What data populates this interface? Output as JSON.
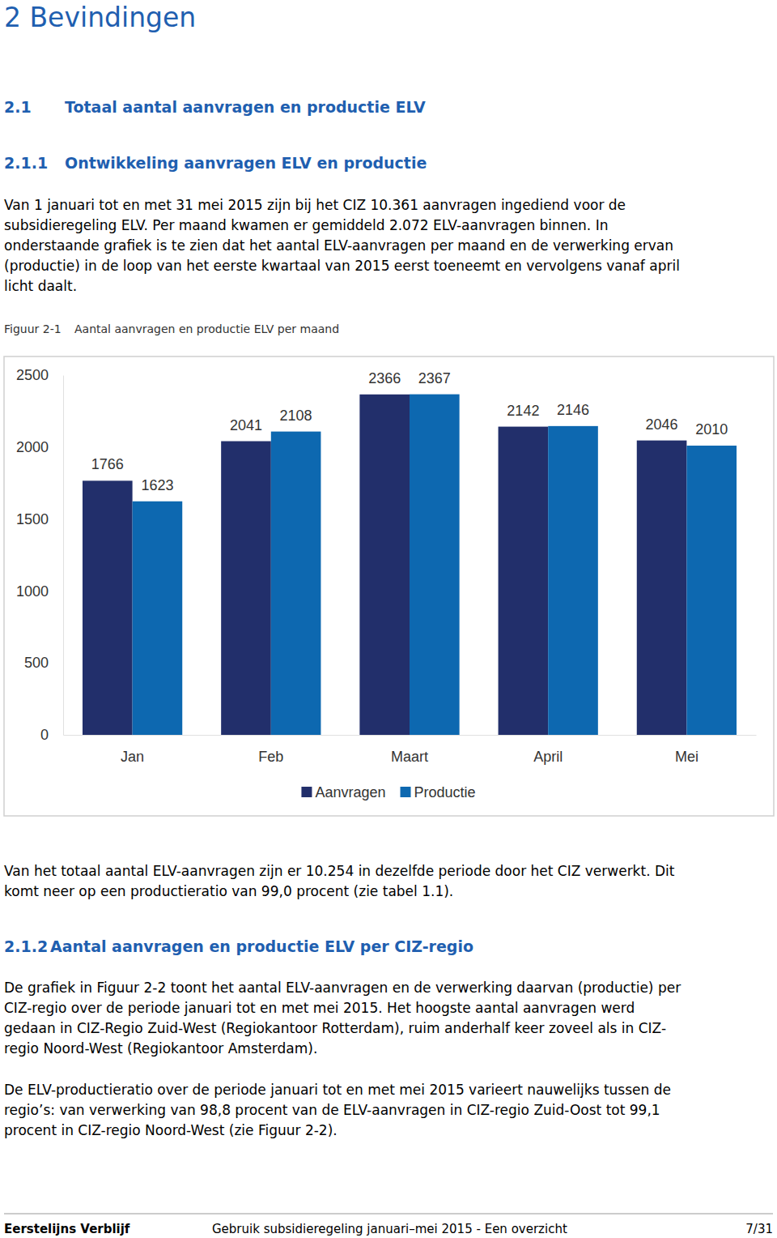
{
  "heading": "2 Bevindingen",
  "section": {
    "number": "2.1",
    "title": "Totaal aantal aanvragen en productie ELV"
  },
  "subsection_1": {
    "number": "2.1.1",
    "title": "Ontwikkeling aanvragen ELV en productie"
  },
  "paragraph_1": [
    "Van 1 januari tot en met 31 mei 2015 zijn bij het CIZ 10.361 aanvragen ingediend voor de",
    "subsidieregeling ELV. Per maand kwamen er gemiddeld 2.072 ELV-aanvragen binnen. In",
    "onderstaande grafiek is te zien dat het aantal ELV-aanvragen per maand en de verwerking ervan",
    "(productie) in de loop van het eerste kwartaal van 2015 eerst toeneemt en vervolgens vanaf april",
    "licht daalt."
  ],
  "figure_caption": {
    "number": "Figuur 2-1",
    "title": "Aantal aanvragen en productie ELV per maand"
  },
  "chart_data": {
    "type": "bar",
    "categories": [
      "Jan",
      "Feb",
      "Maart",
      "April",
      "Mei"
    ],
    "series": [
      {
        "name": "Aanvragen",
        "color": "#222f6b",
        "values": [
          1766,
          2041,
          2366,
          2142,
          2046
        ]
      },
      {
        "name": "Productie",
        "color": "#0d68b0",
        "values": [
          1623,
          2108,
          2367,
          2146,
          2010
        ]
      }
    ],
    "ylim": [
      0,
      2500
    ],
    "yticks": [
      0,
      500,
      1000,
      1500,
      2000,
      2500
    ],
    "grid": false,
    "legend": "bottom",
    "data_labels": true
  },
  "paragraph_2": [
    "Van het totaal aantal ELV-aanvragen zijn er 10.254 in dezelfde periode door het CIZ verwerkt. Dit",
    "komt neer op een productieratio van 99,0 procent (zie tabel 1.1)."
  ],
  "subsection_2": {
    "number": "2.1.2",
    "title": "Aantal aanvragen en productie ELV per CIZ-regio"
  },
  "paragraph_3": [
    "De grafiek in Figuur 2-2 toont het aantal ELV-aanvragen en de verwerking daarvan (productie) per",
    "CIZ-regio over de periode januari tot en met mei 2015. Het hoogste aantal aanvragen werd",
    "gedaan in CIZ-Regio Zuid-West (Regiokantoor Rotterdam), ruim anderhalf keer zoveel als in CIZ-",
    "regio Noord-West (Regiokantoor Amsterdam)."
  ],
  "paragraph_4": [
    "De ELV-productieratio over de periode januari tot en met mei 2015 varieert nauwelijks tussen de",
    "regio’s: van verwerking van 98,8 procent van de ELV-aanvragen in CIZ-regio Zuid-Oost tot 99,1",
    "procent in CIZ-regio Noord-West (zie Figuur 2-2)."
  ],
  "footer": {
    "left": "Eerstelijns Verblijf",
    "center": "Gebruik subsidieregeling januari–mei 2015 - Een overzicht",
    "right": "7/31"
  }
}
